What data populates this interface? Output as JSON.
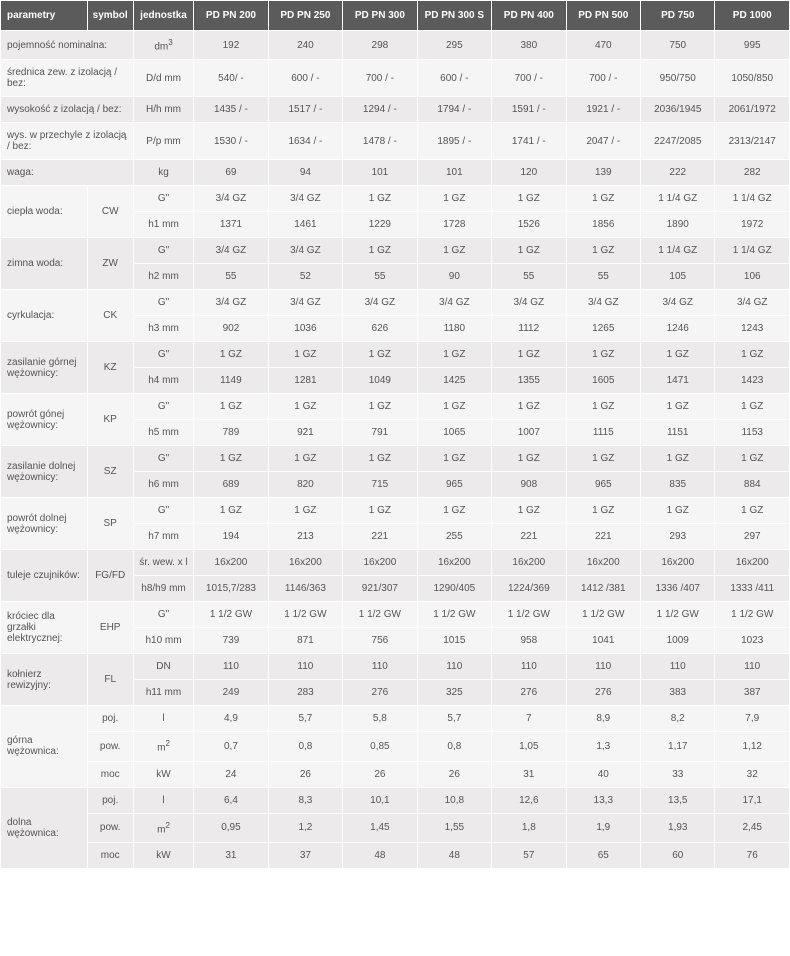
{
  "headers": [
    "parametry",
    "symbol",
    "jednostka",
    "PD PN 200",
    "PD PN 250",
    "PD PN 300",
    "PD PN 300 S",
    "PD PN 400",
    "PD PN 500",
    "PD 750",
    "PD 1000"
  ],
  "simpleRows": [
    {
      "param": "pojemność nominalna:",
      "symbol": "",
      "unit": "dm³",
      "v": [
        "192",
        "240",
        "298",
        "295",
        "380",
        "470",
        "750",
        "995"
      ]
    },
    {
      "param": "średnica zew. z izolacją / bez:",
      "symbol": "",
      "unit": "D/d mm",
      "v": [
        "540/ -",
        "600 / -",
        "700 / -",
        "600 / -",
        "700 / -",
        "700 / -",
        "950/750",
        "1050/850"
      ]
    },
    {
      "param": "wysokość z izolacją / bez:",
      "symbol": "",
      "unit": "H/h mm",
      "v": [
        "1435 / -",
        "1517 / -",
        "1294 / -",
        "1794 / -",
        "1591 / -",
        "1921 / -",
        "2036/1945",
        "2061/1972"
      ]
    },
    {
      "param": "wys. w przechyle z izolacją / bez:",
      "symbol": "",
      "unit": "P/p mm",
      "v": [
        "1530 / -",
        "1634 / -",
        "1478 / -",
        "1895 / -",
        "1741 / -",
        "2047 / -",
        "2247/2085",
        "2313/2147"
      ]
    },
    {
      "param": "waga:",
      "symbol": "",
      "unit": "kg",
      "v": [
        "69",
        "94",
        "101",
        "101",
        "120",
        "139",
        "222",
        "282"
      ]
    }
  ],
  "doubleRows": [
    {
      "param": "ciepła woda:",
      "symbol": "CW",
      "u1": "G\"",
      "r1": [
        "3/4 GZ",
        "3/4 GZ",
        "1 GZ",
        "1 GZ",
        "1 GZ",
        "1 GZ",
        "1 1/4 GZ",
        "1 1/4 GZ"
      ],
      "u2": "h1 mm",
      "r2": [
        "1371",
        "1461",
        "1229",
        "1728",
        "1526",
        "1856",
        "1890",
        "1972"
      ]
    },
    {
      "param": "zimna woda:",
      "symbol": "ZW",
      "u1": "G\"",
      "r1": [
        "3/4 GZ",
        "3/4 GZ",
        "1 GZ",
        "1 GZ",
        "1 GZ",
        "1 GZ",
        "1 1/4 GZ",
        "1 1/4 GZ"
      ],
      "u2": "h2 mm",
      "r2": [
        "55",
        "52",
        "55",
        "90",
        "55",
        "55",
        "105",
        "106"
      ]
    },
    {
      "param": "cyrkulacja:",
      "symbol": "CK",
      "u1": "G\"",
      "r1": [
        "3/4 GZ",
        "3/4 GZ",
        "3/4 GZ",
        "3/4 GZ",
        "3/4 GZ",
        "3/4 GZ",
        "3/4 GZ",
        "3/4 GZ"
      ],
      "u2": "h3 mm",
      "r2": [
        "902",
        "1036",
        "626",
        "1180",
        "1112",
        "1265",
        "1246",
        "1243"
      ]
    },
    {
      "param": "zasilanie górnej wężownicy:",
      "symbol": "KZ",
      "u1": "G\"",
      "r1": [
        "1 GZ",
        "1 GZ",
        "1 GZ",
        "1 GZ",
        "1 GZ",
        "1 GZ",
        "1 GZ",
        "1 GZ"
      ],
      "u2": "h4 mm",
      "r2": [
        "1149",
        "1281",
        "1049",
        "1425",
        "1355",
        "1605",
        "1471",
        "1423"
      ]
    },
    {
      "param": "powrót gónej wężownicy:",
      "symbol": "KP",
      "u1": "G\"",
      "r1": [
        "1 GZ",
        "1 GZ",
        "1 GZ",
        "1 GZ",
        "1 GZ",
        "1 GZ",
        "1 GZ",
        "1 GZ"
      ],
      "u2": "h5 mm",
      "r2": [
        "789",
        "921",
        "791",
        "1065",
        "1007",
        "1115",
        "1151",
        "1153"
      ]
    },
    {
      "param": "zasilanie dolnej wężownicy:",
      "symbol": "SZ",
      "u1": "G\"",
      "r1": [
        "1 GZ",
        "1 GZ",
        "1 GZ",
        "1 GZ",
        "1 GZ",
        "1 GZ",
        "1 GZ",
        "1 GZ"
      ],
      "u2": "h6 mm",
      "r2": [
        "689",
        "820",
        "715",
        "965",
        "908",
        "965",
        "835",
        "884"
      ]
    },
    {
      "param": "powrót dolnej wężownicy:",
      "symbol": "SP",
      "u1": "G\"",
      "r1": [
        "1 GZ",
        "1 GZ",
        "1 GZ",
        "1 GZ",
        "1 GZ",
        "1 GZ",
        "1 GZ",
        "1 GZ"
      ],
      "u2": "h7 mm",
      "r2": [
        "194",
        "213",
        "221",
        "255",
        "221",
        "221",
        "293",
        "297"
      ]
    },
    {
      "param": "tuleje czujników:",
      "symbol": "FG/FD",
      "u1": "śr. wew. x l",
      "r1": [
        "16x200",
        "16x200",
        "16x200",
        "16x200",
        "16x200",
        "16x200",
        "16x200",
        "16x200"
      ],
      "u2": "h8/h9 mm",
      "r2": [
        "1015,7/283",
        "1146/363",
        "921/307",
        "1290/405",
        "1224/369",
        "1412 /381",
        "1336 /407",
        "1333 /411"
      ]
    },
    {
      "param": "króciec dla grzałki elektrycznej:",
      "symbol": "EHP",
      "u1": "G\"",
      "r1": [
        "1 1/2  GW",
        "1 1/2 GW",
        "1 1/2 GW",
        "1 1/2 GW",
        "1 1/2 GW",
        "1 1/2 GW",
        "1 1/2 GW",
        "1 1/2 GW"
      ],
      "u2": "h10 mm",
      "r2": [
        "739",
        "871",
        "756",
        "1015",
        "958",
        "1041",
        "1009",
        "1023"
      ]
    },
    {
      "param": "kołnierz rewizyjny:",
      "symbol": "FL",
      "u1": "DN",
      "r1": [
        "110",
        "110",
        "110",
        "110",
        "110",
        "110",
        "110",
        "110"
      ],
      "u2": "h11 mm",
      "r2": [
        "249",
        "283",
        "276",
        "325",
        "276",
        "276",
        "383",
        "387"
      ]
    }
  ],
  "tripleRows": [
    {
      "param": "górna wężownica:",
      "s1": "poj.",
      "u1": "l",
      "r1": [
        "4,9",
        "5,7",
        "5,8",
        "5,7",
        "7",
        "8,9",
        "8,2",
        "7,9"
      ],
      "s2": "pow.",
      "u2": "m²",
      "r2": [
        "0,7",
        "0,8",
        "0,85",
        "0,8",
        "1,05",
        "1,3",
        "1,17",
        "1,12"
      ],
      "s3": "moc",
      "u3": "kW",
      "r3": [
        "24",
        "26",
        "26",
        "26",
        "31",
        "40",
        "33",
        "32"
      ]
    },
    {
      "param": "dolna wężownica:",
      "s1": "poj.",
      "u1": "l",
      "r1": [
        "6,4",
        "8,3",
        "10,1",
        "10,8",
        "12,6",
        "13,3",
        "13,5",
        "17,1"
      ],
      "s2": "pow.",
      "u2": "m²",
      "r2": [
        "0,95",
        "1,2",
        "1,45",
        "1,55",
        "1,8",
        "1,9",
        "1,93",
        "2,45"
      ],
      "s3": "moc",
      "u3": "kW",
      "r3": [
        "31",
        "37",
        "48",
        "48",
        "57",
        "65",
        "60",
        "76"
      ]
    }
  ],
  "colors": {
    "header_bg": "#5b5b5b",
    "header_fg": "#ffffff",
    "row_bg": "#eceaea",
    "row_alt_bg": "#f6f5f5",
    "text": "#555555",
    "border": "#ffffff"
  }
}
